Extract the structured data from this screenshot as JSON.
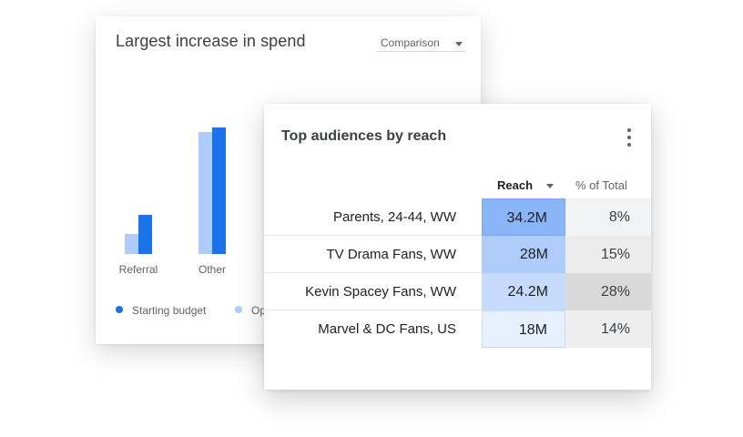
{
  "chart_card": {
    "title": "Largest increase in spend",
    "dropdown": {
      "selected": "Comparison"
    },
    "legend": [
      {
        "label": "Starting budget",
        "color": "#1a73e8"
      },
      {
        "label": "Op",
        "color": "#aecbfa"
      }
    ]
  },
  "chart_data": {
    "type": "bar",
    "title": "Largest increase in spend",
    "categories": [
      "Referral",
      "Other"
    ],
    "series": [
      {
        "name": "Starting budget",
        "color": "#aecbfa",
        "values": [
          22,
          134
        ]
      },
      {
        "name": "",
        "color": "#1a73e8",
        "values": [
          43,
          139
        ]
      }
    ],
    "ylim": [
      0,
      160
    ],
    "grid": false,
    "legend_position": "bottom"
  },
  "table_card": {
    "title": "Top audiences by reach",
    "menu_icon": "more-vert-icon",
    "columns": {
      "reach": "Reach",
      "pct": "% of Total"
    },
    "rows": [
      {
        "name": "Parents, 24-44, WW",
        "reach": "34.2M",
        "pct": "8%",
        "reach_bg": "#8ab4f8",
        "pct_bg": "#f1f3f4"
      },
      {
        "name": "TV Drama Fans, WW",
        "reach": "28M",
        "pct": "15%",
        "reach_bg": "#aecbfa",
        "pct_bg": "#ececec"
      },
      {
        "name": "Kevin Spacey Fans, WW",
        "reach": "24.2M",
        "pct": "28%",
        "reach_bg": "#c6dafc",
        "pct_bg": "#d9d9d9"
      },
      {
        "name": "Marvel & DC Fans, US",
        "reach": "18M",
        "pct": "14%",
        "reach_bg": "#e8f0fe",
        "pct_bg": "#eeeeee"
      }
    ]
  }
}
